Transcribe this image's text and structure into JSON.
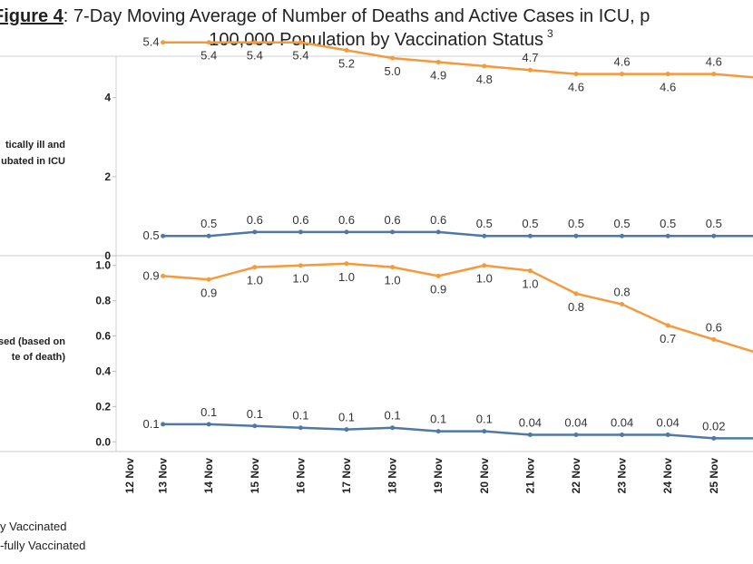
{
  "figure": {
    "label": "Figure 4",
    "text": ": 7-Day Moving Average of Number of Deaths and Active Cases in ICU, p",
    "line2": "100,000 Population by Vaccination Status",
    "superscript": "3"
  },
  "chart_data": [
    {
      "type": "line",
      "ylabel": [
        "tically ill and",
        "ubated in ICU"
      ],
      "ylim": [
        0,
        5.6
      ],
      "yticks": [
        0,
        2,
        4
      ],
      "series": [
        {
          "color": "#f5993b",
          "values": [
            null,
            5.4,
            5.4,
            5.4,
            5.4,
            5.2,
            5.0,
            4.9,
            4.8,
            4.7,
            4.6,
            4.6,
            4.6,
            4.6,
            4.5
          ],
          "value_labels": [
            null,
            "5.4",
            "5.4",
            "5.4",
            "5.4",
            "5.2",
            "5.0",
            "4.9",
            "4.8",
            "4.7",
            "4.6",
            "4.6",
            "4.6",
            "4.6",
            null
          ]
        },
        {
          "color": "#4e79a7",
          "values": [
            null,
            0.5,
            0.5,
            0.6,
            0.6,
            0.6,
            0.6,
            0.6,
            0.5,
            0.5,
            0.5,
            0.5,
            0.5,
            0.5,
            0.5
          ],
          "value_labels": [
            null,
            "0.5",
            "0.5",
            "0.6",
            "0.6",
            "0.6",
            "0.6",
            "0.6",
            "0.5",
            "0.5",
            "0.5",
            "0.5",
            "0.5",
            "0.5",
            null
          ]
        }
      ]
    },
    {
      "type": "line",
      "ylabel": [
        "ased (based on",
        "te of death)"
      ],
      "ylim": [
        -0.05,
        1.05
      ],
      "yticks": [
        {
          "value": 0,
          "label": "0.0"
        },
        0.2,
        0.4,
        0.6,
        0.8,
        {
          "value": 1,
          "label": "1.0"
        }
      ],
      "categories": [
        "12 Nov",
        "13 Nov",
        "14 Nov",
        "15 Nov",
        "16 Nov",
        "17 Nov",
        "18 Nov",
        "19 Nov",
        "20 Nov",
        "21 Nov",
        "22 Nov",
        "23 Nov",
        "24 Nov",
        "25 Nov",
        null
      ],
      "series": [
        {
          "name": "-fully Vaccinated",
          "color": "#f5993b",
          "values": [
            null,
            0.94,
            0.92,
            0.99,
            1.0,
            1.01,
            0.99,
            0.94,
            1.0,
            0.97,
            0.84,
            0.78,
            0.66,
            0.58,
            0.5
          ],
          "value_labels": [
            null,
            "0.9",
            "0.9",
            "1.0",
            "1.0",
            "1.0",
            "1.0",
            "0.9",
            "1.0",
            "1.0",
            "0.8",
            "0.8",
            "0.7",
            "0.6",
            null
          ]
        },
        {
          "name": "y Vaccinated",
          "color": "#4e79a7",
          "values": [
            null,
            0.1,
            0.1,
            0.09,
            0.08,
            0.07,
            0.08,
            0.06,
            0.06,
            0.04,
            0.04,
            0.04,
            0.04,
            0.02,
            0.02
          ],
          "value_labels": [
            null,
            "0.1",
            "0.1",
            "0.1",
            "0.1",
            "0.1",
            "0.1",
            "0.1",
            "0.1",
            "0.04",
            "0.04",
            "0.04",
            "0.04",
            "0.02",
            null
          ]
        }
      ]
    }
  ]
}
